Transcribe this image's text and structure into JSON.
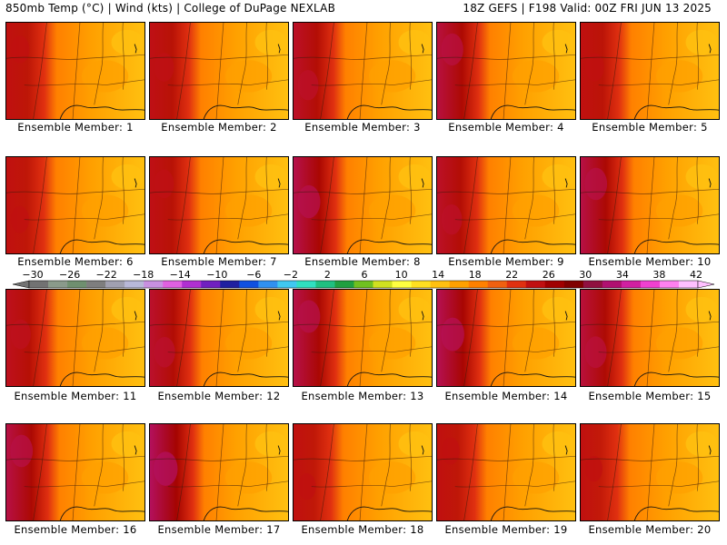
{
  "header": {
    "left": "850mb Temp (°C) | Wind (kts) | College of DuPage NEXLAB",
    "right": "18Z GEFS | F198 Valid: 00Z FRI JUN 13 2025"
  },
  "members": [
    {
      "label": "Ensemble Member: 1",
      "warmth": 0.55
    },
    {
      "label": "Ensemble Member: 2",
      "warmth": 0.62
    },
    {
      "label": "Ensemble Member: 3",
      "warmth": 0.7
    },
    {
      "label": "Ensemble Member: 4",
      "warmth": 0.8
    },
    {
      "label": "Ensemble Member: 5",
      "warmth": 0.58
    },
    {
      "label": "Ensemble Member: 6",
      "warmth": 0.52
    },
    {
      "label": "Ensemble Member: 7",
      "warmth": 0.62
    },
    {
      "label": "Ensemble Member: 8",
      "warmth": 0.85
    },
    {
      "label": "Ensemble Member: 9",
      "warmth": 0.7
    },
    {
      "label": "Ensemble Member: 10",
      "warmth": 0.82
    },
    {
      "label": "Ensemble Member: 11",
      "warmth": 0.66
    },
    {
      "label": "Ensemble Member: 12",
      "warmth": 0.72
    },
    {
      "label": "Ensemble Member: 13",
      "warmth": 0.84
    },
    {
      "label": "Ensemble Member: 14",
      "warmth": 0.88
    },
    {
      "label": "Ensemble Member: 15",
      "warmth": 0.78
    },
    {
      "label": "Ensemble Member: 16",
      "warmth": 0.82
    },
    {
      "label": "Ensemble Member: 17",
      "warmth": 0.92
    },
    {
      "label": "Ensemble Member: 18",
      "warmth": 0.5
    },
    {
      "label": "Ensemble Member: 19",
      "warmth": 0.52
    },
    {
      "label": "Ensemble Member: 20",
      "warmth": 0.45
    }
  ],
  "colorbar": {
    "tick_labels": [
      "-30",
      "-26",
      "-22",
      "-18",
      "-14",
      "-10",
      "-6",
      "-2",
      "2",
      "6",
      "10",
      "14",
      "18",
      "22",
      "26",
      "30",
      "34",
      "38",
      "42"
    ],
    "colors": [
      "#727272",
      "#8a9a8a",
      "#6f8f6f",
      "#7e7e7e",
      "#a0a0b0",
      "#b8b8d8",
      "#c890e0",
      "#e060e0",
      "#b030d0",
      "#7020c0",
      "#2020a0",
      "#1050e0",
      "#3090f0",
      "#40c8f0",
      "#30e0c0",
      "#20c080",
      "#20a040",
      "#70c020",
      "#d0e020",
      "#ffff40",
      "#ffe020",
      "#ffc010",
      "#ffa000",
      "#ff8000",
      "#f06010",
      "#e03010",
      "#c01010",
      "#a00000",
      "#800000",
      "#901040",
      "#b01070",
      "#d020a0",
      "#f040d0",
      "#ff80f0",
      "#ffc0ff"
    ]
  }
}
